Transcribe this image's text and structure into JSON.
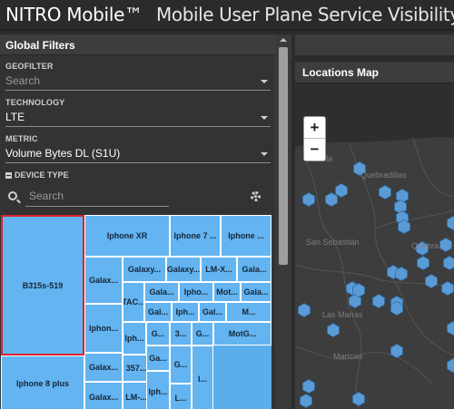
{
  "header": {
    "brand": "NITRO Mobile™",
    "title": "Mobile User Plane Service Visibility"
  },
  "filters": {
    "title": "Global Filters",
    "geofilter": {
      "label": "GEOFILTER",
      "placeholder": "Search"
    },
    "technology": {
      "label": "TECHNOLOGY",
      "value": "LTE"
    },
    "metric": {
      "label": "METRIC",
      "value": "Volume Bytes DL (S1U)"
    },
    "device_type": {
      "label": "DEVICE TYPE",
      "search_placeholder": "Search",
      "tiles": [
        "B315s-519",
        "Iphone 8 plus",
        "Iphone XR",
        "Iphone 7 ...",
        "Iphone ...",
        "Galax...",
        "Galaxy...",
        "Galaxy...",
        "LM-X...",
        "Gala...",
        "TAC...",
        "Gala...",
        "Ipho...",
        "Mot...",
        "Gala...",
        "Iphon...",
        "Gal...",
        "Iph...",
        "Gal...",
        "M...",
        "Iph...",
        "G...",
        "3...",
        "G...",
        "MotG...",
        "Galax...",
        "357...",
        "Ga...",
        "Galax...",
        "LM-...",
        "Iph...",
        "G...",
        "L...",
        "I..."
      ],
      "tile_color": "#63b4f0",
      "selected_border_color": "#e0202a"
    }
  },
  "map": {
    "title": "Locations Map",
    "zoom_in": "+",
    "zoom_out": "−",
    "places": [
      "Isabela",
      "Quebradillas",
      "San Sebastián",
      "Quebra...",
      "Las Marías",
      "Maricao"
    ],
    "marker_color": "#5b9bd5"
  }
}
